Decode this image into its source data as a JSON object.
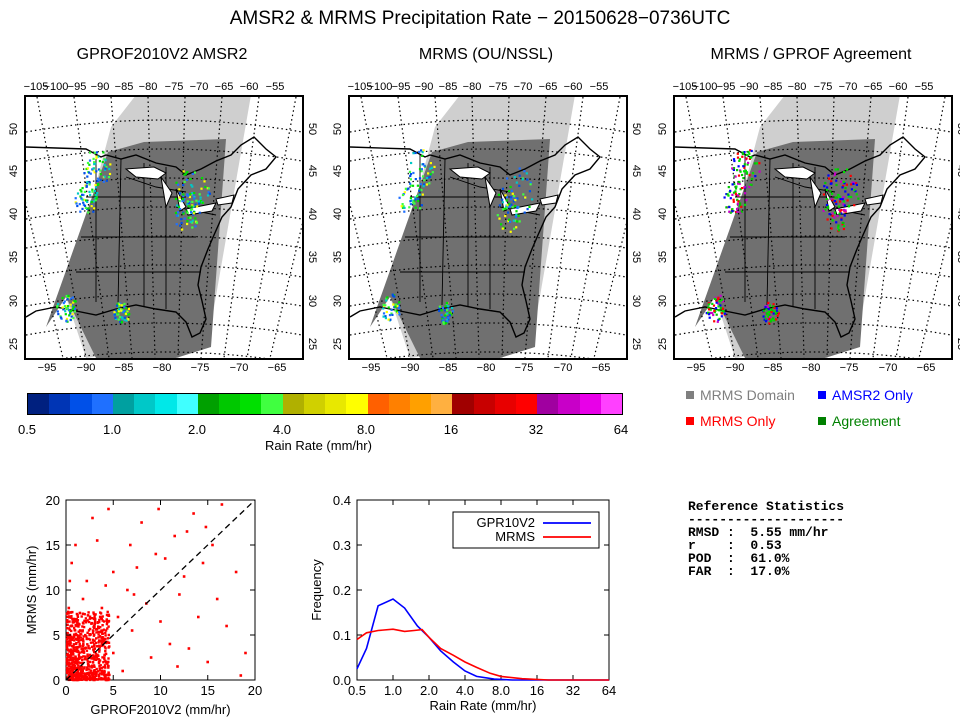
{
  "title": "AMSR2 & MRMS Precipitation Rate − 20150628−0736UTC",
  "maps": [
    {
      "title": "GPROF2010V2 AMSR2",
      "variant": "gprof"
    },
    {
      "title": "MRMS (OU/NSSL)",
      "variant": "mrms"
    },
    {
      "title": "MRMS / GPROF Agreement",
      "variant": "agree"
    }
  ],
  "map_top_lon_labels": [
    "−105",
    "−100",
    "−95",
    "−90",
    "−85",
    "−80",
    "−75",
    "−70",
    "−65",
    "−60",
    "−55"
  ],
  "map_bottom_lon_labels": [
    "−95",
    "−90",
    "−85",
    "−80",
    "−75",
    "−70",
    "−65"
  ],
  "map_lat_labels": [
    "50",
    "45",
    "40",
    "35",
    "30",
    "25"
  ],
  "colorbar": {
    "colors": [
      "#00207f",
      "#0035b5",
      "#0050e8",
      "#1f70ff",
      "#00a0a0",
      "#00c8c8",
      "#00e8e8",
      "#40ffff",
      "#00a000",
      "#00c800",
      "#00e000",
      "#40ff40",
      "#b0b000",
      "#d0d000",
      "#e8e800",
      "#ffff00",
      "#ff6000",
      "#ff8000",
      "#ffa000",
      "#ffb040",
      "#a00000",
      "#c80000",
      "#e80000",
      "#ff0000",
      "#a000a0",
      "#c800c8",
      "#e800e8",
      "#ff40ff"
    ],
    "tick_labels": [
      "0.5",
      "1.0",
      "2.0",
      "4.0",
      "8.0",
      "16",
      "32",
      "64"
    ],
    "title": "Rain Rate (mm/hr)"
  },
  "legend": [
    {
      "label": "MRMS Domain",
      "color": "#7f7f7f"
    },
    {
      "label": "AMSR2 Only",
      "color": "#0000ff"
    },
    {
      "label": "MRMS Only",
      "color": "#ff0000"
    },
    {
      "label": "Agreement",
      "color": "#008000"
    }
  ],
  "stats": {
    "title": "Reference Statistics",
    "divider": "--------------------",
    "rows": [
      "RMSD :  5.55 mm/hr",
      "r    :  0.53",
      "POD  :  61.0%",
      "FAR  :  17.0%"
    ]
  },
  "chart_data": [
    {
      "type": "scatter",
      "xlabel": "GPROF2010V2 (mm/hr)",
      "ylabel": "MRMS (mm/hr)",
      "xlim": [
        0,
        20
      ],
      "ylim": [
        0,
        20
      ],
      "xticks": [
        "0",
        "5",
        "10",
        "15",
        "20"
      ],
      "yticks": [
        "0",
        "5",
        "10",
        "15",
        "20"
      ],
      "reference_line": "1:1 dashed",
      "color": "#ff0000",
      "points": [
        [
          0.8,
          1.2
        ],
        [
          1.0,
          2.5
        ],
        [
          1.5,
          0.7
        ],
        [
          2.0,
          3.5
        ],
        [
          1.2,
          4.5
        ],
        [
          2.5,
          1.5
        ],
        [
          3.0,
          6.0
        ],
        [
          0.5,
          7.5
        ],
        [
          1.8,
          9.0
        ],
        [
          2.2,
          11.0
        ],
        [
          0.6,
          13.0
        ],
        [
          1.0,
          15.0
        ],
        [
          3.5,
          2.0
        ],
        [
          4.0,
          4.5
        ],
        [
          5.0,
          3.0
        ],
        [
          5.5,
          7.0
        ],
        [
          6.0,
          1.0
        ],
        [
          6.5,
          10.0
        ],
        [
          7.0,
          5.5
        ],
        [
          7.5,
          12.5
        ],
        [
          8.0,
          17.5
        ],
        [
          8.5,
          8.5
        ],
        [
          9.0,
          2.5
        ],
        [
          9.5,
          14.0
        ],
        [
          10.0,
          6.5
        ],
        [
          10.5,
          13.5
        ],
        [
          11.0,
          4.0
        ],
        [
          11.5,
          16.0
        ],
        [
          12.0,
          9.5
        ],
        [
          12.5,
          11.5
        ],
        [
          13.0,
          3.5
        ],
        [
          13.5,
          18.5
        ],
        [
          14.0,
          7.0
        ],
        [
          14.5,
          13.0
        ],
        [
          15.0,
          2.0
        ],
        [
          15.5,
          15.0
        ],
        [
          16.0,
          9.0
        ],
        [
          16.5,
          19.5
        ],
        [
          17.0,
          6.0
        ],
        [
          18.0,
          12.0
        ],
        [
          18.5,
          0.5
        ],
        [
          19.0,
          3.0
        ],
        [
          2.8,
          18.0
        ],
        [
          3.3,
          15.5
        ],
        [
          4.5,
          19.0
        ],
        [
          5.0,
          12.0
        ],
        [
          2.0,
          0.3
        ],
        [
          3.0,
          0.4
        ],
        [
          4.0,
          0.8
        ],
        [
          0.3,
          4.0
        ],
        [
          0.3,
          8.0
        ],
        [
          0.4,
          11.0
        ],
        [
          1.5,
          5.5
        ],
        [
          2.5,
          5.0
        ],
        [
          3.8,
          8.0
        ],
        [
          4.2,
          10.5
        ],
        [
          6.8,
          15.0
        ],
        [
          9.8,
          19.0
        ],
        [
          7.2,
          9.5
        ],
        [
          12.8,
          16.5
        ],
        [
          14.8,
          17.0
        ],
        [
          11.8,
          1.5
        ]
      ],
      "dense_cluster": {
        "x_range": [
          0,
          5
        ],
        "y_range": [
          0,
          8
        ]
      }
    },
    {
      "type": "line",
      "x": [
        "0.5",
        "1.0",
        "2.0",
        "4.0",
        "8.0",
        "16",
        "32",
        "64"
      ],
      "xlabel": "Rain Rate (mm/hr)",
      "ylabel": "Frequency",
      "ylim": [
        0.0,
        0.4
      ],
      "yticks": [
        "0.0",
        "0.1",
        "0.2",
        "0.3",
        "0.4"
      ],
      "legend_placement": "top-right",
      "series": [
        {
          "name": "GPR10V2",
          "color": "#0000ff",
          "points": [
            [
              0.5,
              0.025
            ],
            [
              0.6,
              0.07
            ],
            [
              0.75,
              0.165
            ],
            [
              1.0,
              0.18
            ],
            [
              1.25,
              0.16
            ],
            [
              1.6,
              0.12
            ],
            [
              2.0,
              0.095
            ],
            [
              2.5,
              0.065
            ],
            [
              3.2,
              0.04
            ],
            [
              4.0,
              0.02
            ],
            [
              5.0,
              0.008
            ],
            [
              7.0,
              0.002
            ],
            [
              10,
              0.0
            ],
            [
              64,
              0.0
            ]
          ]
        },
        {
          "name": "MRMS",
          "color": "#ff0000",
          "points": [
            [
              0.5,
              0.09
            ],
            [
              0.6,
              0.105
            ],
            [
              0.75,
              0.11
            ],
            [
              1.0,
              0.113
            ],
            [
              1.25,
              0.108
            ],
            [
              1.5,
              0.11
            ],
            [
              1.75,
              0.112
            ],
            [
              2.0,
              0.095
            ],
            [
              2.5,
              0.07
            ],
            [
              3.2,
              0.055
            ],
            [
              4.0,
              0.04
            ],
            [
              5.0,
              0.028
            ],
            [
              6.5,
              0.015
            ],
            [
              8.0,
              0.008
            ],
            [
              12,
              0.003
            ],
            [
              20,
              0.0
            ],
            [
              64,
              0.0
            ]
          ]
        }
      ]
    }
  ]
}
